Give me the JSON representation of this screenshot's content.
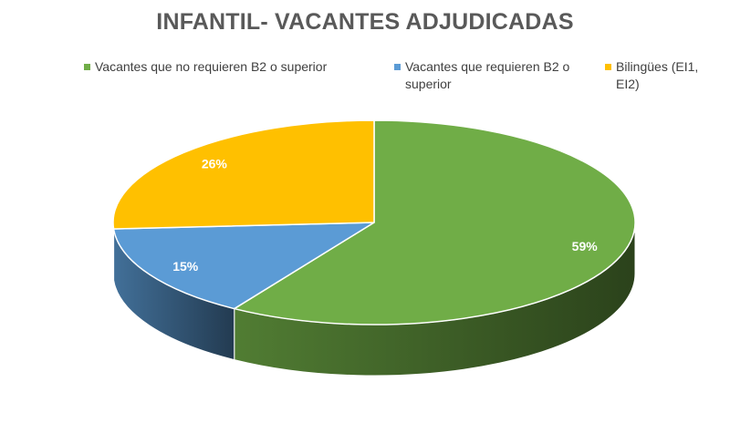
{
  "chart_data": {
    "type": "pie",
    "title": "INFANTIL- VACANTES ADJUDICADAS",
    "categories": [
      "Vacantes que no requieren B2 o superior",
      "Vacantes que requieren B2 o superior",
      "Bilingües (EI1, EI2)"
    ],
    "values": [
      59,
      15,
      26
    ],
    "labels": [
      "59%",
      "15%",
      "26%"
    ],
    "unit": "%",
    "legend": "top",
    "colors": [
      "#70AD47",
      "#5B9BD5",
      "#FFC000"
    ],
    "three_d": true
  }
}
